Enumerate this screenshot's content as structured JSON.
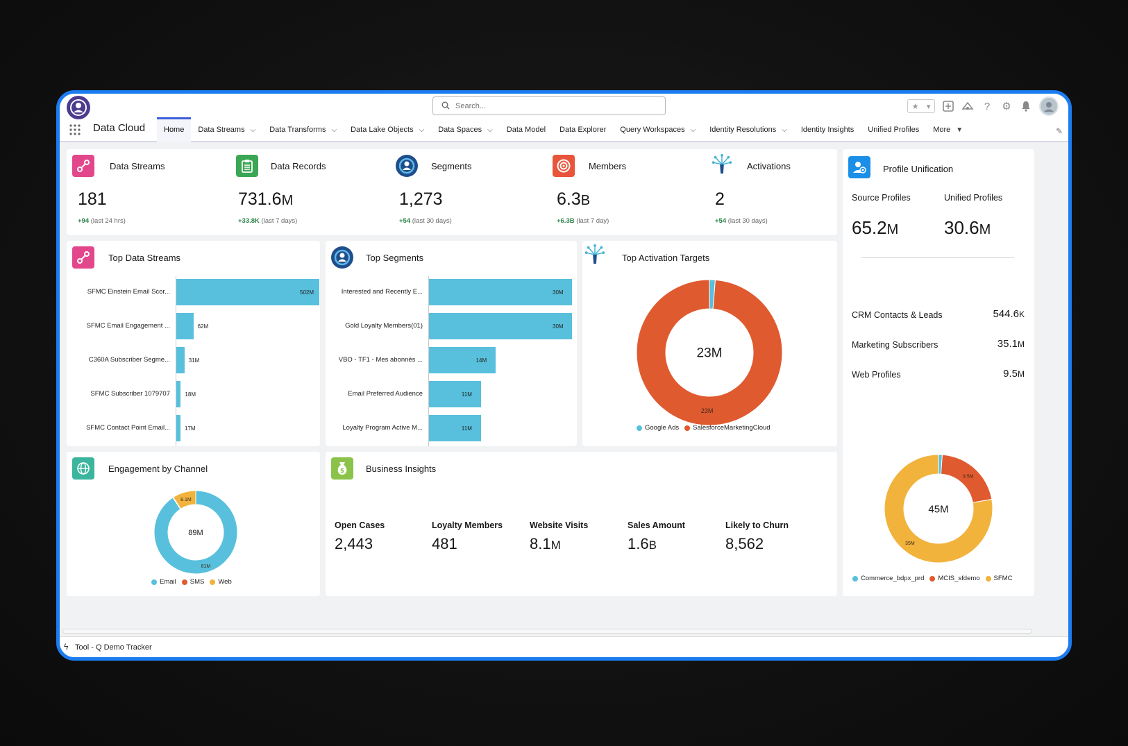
{
  "app": {
    "name": "Data Cloud"
  },
  "search": {
    "placeholder": "Search..."
  },
  "nav": {
    "tabs": [
      {
        "label": "Home"
      },
      {
        "label": "Data Streams"
      },
      {
        "label": "Data Transforms"
      },
      {
        "label": "Data Lake Objects"
      },
      {
        "label": "Data Spaces"
      },
      {
        "label": "Data Model"
      },
      {
        "label": "Data Explorer"
      },
      {
        "label": "Query Workspaces"
      },
      {
        "label": "Identity Resolutions"
      },
      {
        "label": "Identity Insights"
      },
      {
        "label": "Unified Profiles"
      },
      {
        "label": "More"
      }
    ]
  },
  "kpis": [
    {
      "title": "Data Streams",
      "value": "181",
      "unit": "",
      "delta": "+94",
      "period": "(last 24 hrs)",
      "color": "#e3478b"
    },
    {
      "title": "Data Records",
      "value": "731.6",
      "unit": "M",
      "delta": "+33.8K",
      "period": "(last 7 days)",
      "color": "#3ba755"
    },
    {
      "title": "Segments",
      "value": "1,273",
      "unit": "",
      "delta": "+54",
      "period": "(last 30 days)",
      "color": "#1f4e8c"
    },
    {
      "title": "Members",
      "value": "6.3",
      "unit": "B",
      "delta": "+6.3B",
      "period": "(last 7 day)",
      "color": "#e8553b"
    },
    {
      "title": "Activations",
      "value": "2",
      "unit": "",
      "delta": "+54",
      "period": "(last 30 days)",
      "color": "#45b3d6"
    }
  ],
  "top_data_streams": {
    "title": "Top Data Streams",
    "chart_data": {
      "type": "bar",
      "categories": [
        "SFMC Einstein Email Scor...",
        "SFMC Email Engagement ...",
        "C360A Subscriber Segme...",
        "SFMC Subscriber 1079707",
        "SFMC Contact Point Email..."
      ],
      "values": [
        502,
        62,
        31,
        18,
        17
      ],
      "value_labels": [
        "502M",
        "62M",
        "31M",
        "18M",
        "17M"
      ],
      "unit": "M",
      "orientation": "horizontal"
    }
  },
  "top_segments": {
    "title": "Top Segments",
    "chart_data": {
      "type": "bar",
      "categories": [
        "Interested and Recently E...",
        "Gold Loyalty Members(01)",
        "VBO - TF1 - Mes abonnés ...",
        "Email Preferred Audience",
        "Loyalty Program Active M..."
      ],
      "values": [
        30,
        30,
        14,
        11,
        11
      ],
      "value_labels": [
        "30M",
        "30M",
        "14M",
        "11M",
        "11M"
      ],
      "unit": "M",
      "orientation": "horizontal"
    }
  },
  "top_activation_targets": {
    "title": "Top Activation Targets",
    "center_label": "23M",
    "chart_data": {
      "type": "pie",
      "categories": [
        "Google Ads",
        "SalesforceMarketingCloud"
      ],
      "values": [
        0.3,
        23
      ],
      "slice_labels": [
        "",
        "23M"
      ],
      "colors": [
        "#58c0dc",
        "#e05a30"
      ],
      "donut": true
    }
  },
  "engagement_by_channel": {
    "title": "Engagement by Channel",
    "center_label": "89M",
    "chart_data": {
      "type": "pie",
      "categories": [
        "Email",
        "SMS",
        "Web"
      ],
      "values": [
        81,
        0.2,
        8.1
      ],
      "slice_labels": [
        "81M",
        "",
        "8.1M"
      ],
      "colors": [
        "#58c0dc",
        "#e05a30",
        "#f2b33d"
      ],
      "donut": true
    }
  },
  "business_insights": {
    "title": "Business Insights",
    "items": [
      {
        "label": "Open Cases",
        "value": "2,443",
        "unit": ""
      },
      {
        "label": "Loyalty Members",
        "value": "481",
        "unit": ""
      },
      {
        "label": "Website Visits",
        "value": "8.1",
        "unit": "M"
      },
      {
        "label": "Sales Amount",
        "value": "1.6",
        "unit": "B"
      },
      {
        "label": "Likely to Churn",
        "value": "8,562",
        "unit": ""
      }
    ]
  },
  "profile_unification": {
    "title": "Profile Unification",
    "source_label": "Source Profiles",
    "source_value": "65.2",
    "source_unit": "M",
    "unified_label": "Unified Profiles",
    "unified_value": "30.6",
    "unified_unit": "M",
    "rows": [
      {
        "label": "CRM Contacts & Leads",
        "value": "544.6",
        "unit": "K"
      },
      {
        "label": "Marketing Subscribers",
        "value": "35.1",
        "unit": "M"
      },
      {
        "label": "Web Profiles",
        "value": "9.5",
        "unit": "M"
      }
    ],
    "center_label": "45M",
    "chart_data": {
      "type": "pie",
      "categories": [
        "Commerce_bdpx_prd",
        "MCIS_sfdemo",
        "SFMC"
      ],
      "values": [
        0.5,
        9.5,
        35
      ],
      "slice_labels": [
        "",
        "9.5M",
        "35M"
      ],
      "colors": [
        "#58c0dc",
        "#e05a30",
        "#f2b33d"
      ],
      "donut": true
    }
  },
  "footer": {
    "label": "Tool - Q Demo Tracker"
  }
}
